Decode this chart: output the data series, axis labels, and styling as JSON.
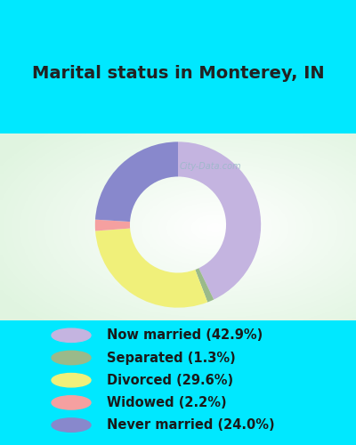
{
  "title": "Marital status in Monterey, IN",
  "categories": [
    "Now married",
    "Separated",
    "Divorced",
    "Widowed",
    "Never married"
  ],
  "values": [
    42.9,
    1.3,
    29.6,
    2.2,
    24.0
  ],
  "colors": [
    "#c4b4e0",
    "#9aba8a",
    "#f0f07a",
    "#f5a0a0",
    "#8888cc"
  ],
  "bg_cyan": "#00e8ff",
  "bg_chart_color1": "#e8f5e8",
  "bg_chart_color2": "#f8fcf8",
  "legend_labels": [
    "Now married (42.9%)",
    "Separated (1.3%)",
    "Divorced (29.6%)",
    "Widowed (2.2%)",
    "Never married (24.0%)"
  ],
  "watermark": "City-Data.com",
  "title_fontsize": 14,
  "legend_fontsize": 10.5,
  "donut_width": 0.42
}
